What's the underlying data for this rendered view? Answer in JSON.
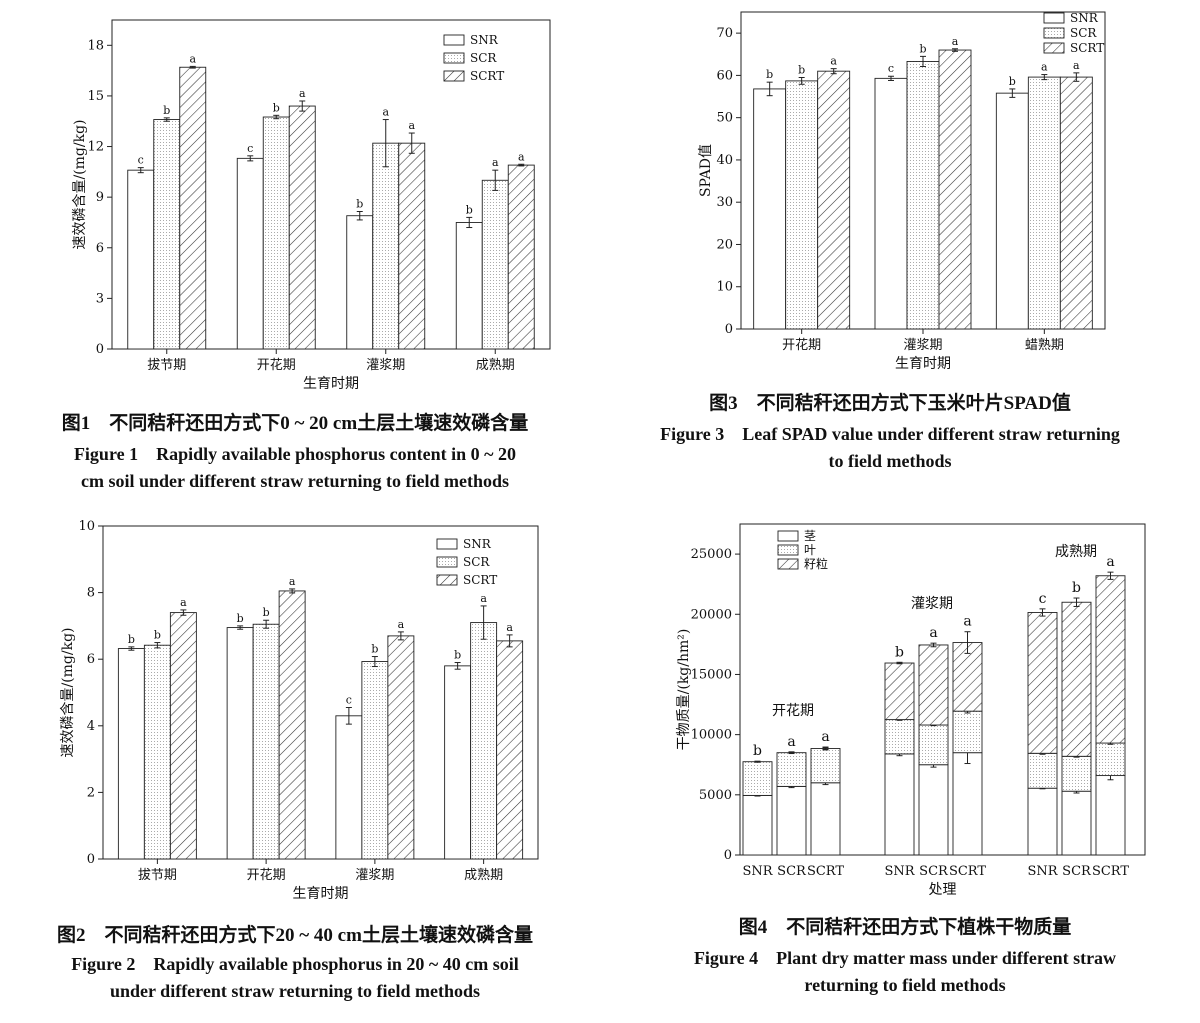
{
  "figures": [
    {
      "caption_zh": "图1　不同秸秆还田方式下0 ~ 20 cm土层土壤速效磷含量",
      "caption_en_1": "Figure 1　Rapidly available phosphorus content in 0 ~ 20",
      "caption_en_2": "cm soil under different straw returning to field methods"
    },
    {
      "caption_zh": "图3　不同秸秆还田方式下玉米叶片SPAD值",
      "caption_en_1": "Figure 3　Leaf SPAD value under different straw returning",
      "caption_en_2": "to field methods"
    },
    {
      "caption_zh": "图2　不同秸秆还田方式下20 ~ 40 cm土层土壤速效磷含量",
      "caption_en_1": "Figure 2　Rapidly available phosphorus in 20 ~ 40 cm soil",
      "caption_en_2": "under different straw returning to field methods"
    },
    {
      "caption_zh": "图4　不同秸秆还田方式下植株干物质量",
      "caption_en_1": "Figure 4　Plant dry matter mass under different straw",
      "caption_en_2": "returning to field methods"
    }
  ],
  "chart_data": [
    {
      "type": "bar",
      "categories": [
        "拔节期",
        "开花期",
        "灌浆期",
        "成熟期"
      ],
      "xlabel": "生育时期",
      "ylabel": "速效磷含量/(mg/kg)",
      "ylim": [
        0,
        19.5
      ],
      "yticks": [
        0,
        3,
        6,
        9,
        12,
        15,
        18
      ],
      "legend_position": "top-right",
      "series": [
        {
          "name": "SNR",
          "pattern": "blank",
          "values": [
            10.6,
            11.3,
            7.9,
            7.5
          ],
          "errors": [
            0.15,
            0.15,
            0.25,
            0.3
          ],
          "letters": [
            "c",
            "c",
            "b",
            "b"
          ]
        },
        {
          "name": "SCR",
          "pattern": "dots",
          "values": [
            13.6,
            13.75,
            12.2,
            10.0
          ],
          "errors": [
            0.1,
            0.1,
            1.4,
            0.6
          ],
          "letters": [
            "b",
            "b",
            "a",
            "a"
          ]
        },
        {
          "name": "SCRT",
          "pattern": "hatch",
          "values": [
            16.7,
            14.4,
            12.2,
            10.9
          ],
          "errors": [
            0.05,
            0.3,
            0.6,
            0.05
          ],
          "letters": [
            "a",
            "a",
            "a",
            "a"
          ]
        }
      ]
    },
    {
      "type": "bar",
      "categories": [
        "开花期",
        "灌浆期",
        "蜡熟期"
      ],
      "xlabel": "生育时期",
      "ylabel": "SPAD值",
      "ylim": [
        0,
        75
      ],
      "yticks": [
        0,
        10,
        20,
        30,
        40,
        50,
        60,
        70
      ],
      "legend_position": "top-right",
      "series": [
        {
          "name": "SNR",
          "pattern": "blank",
          "values": [
            56.8,
            59.3,
            55.8
          ],
          "errors": [
            1.6,
            0.5,
            1.0
          ],
          "letters": [
            "b",
            "c",
            "b"
          ]
        },
        {
          "name": "SCR",
          "pattern": "dots",
          "values": [
            58.7,
            63.3,
            59.6
          ],
          "errors": [
            0.8,
            1.2,
            0.6
          ],
          "letters": [
            "b",
            "b",
            "a"
          ]
        },
        {
          "name": "SCRT",
          "pattern": "hatch",
          "values": [
            61.0,
            66.0,
            59.6
          ],
          "errors": [
            0.6,
            0.3,
            1.0
          ],
          "letters": [
            "a",
            "a",
            "a"
          ]
        }
      ]
    },
    {
      "type": "bar",
      "categories": [
        "拔节期",
        "开花期",
        "灌浆期",
        "成熟期"
      ],
      "xlabel": "生育时期",
      "ylabel": "速效磷含量/(mg/kg)",
      "ylim": [
        0,
        10
      ],
      "yticks": [
        0,
        2,
        4,
        6,
        8,
        10
      ],
      "legend_position": "top-right",
      "series": [
        {
          "name": "SNR",
          "pattern": "blank",
          "values": [
            6.32,
            6.95,
            4.3,
            5.8
          ],
          "errors": [
            0.05,
            0.05,
            0.25,
            0.1
          ],
          "letters": [
            "b",
            "b",
            "c",
            "b"
          ]
        },
        {
          "name": "SCR",
          "pattern": "dots",
          "values": [
            6.42,
            7.05,
            5.93,
            7.1
          ],
          "errors": [
            0.08,
            0.12,
            0.15,
            0.5
          ],
          "letters": [
            "b",
            "b",
            "b",
            "a"
          ]
        },
        {
          "name": "SCRT",
          "pattern": "hatch",
          "values": [
            7.4,
            8.05,
            6.7,
            6.55
          ],
          "errors": [
            0.08,
            0.06,
            0.12,
            0.18
          ],
          "letters": [
            "a",
            "a",
            "a",
            "a"
          ]
        }
      ]
    },
    {
      "type": "bar",
      "stacked": true,
      "groups": [
        "开花期",
        "灌浆期",
        "成熟期"
      ],
      "categories": [
        "SNR",
        "SCR",
        "SCRT"
      ],
      "xlabel": "处理",
      "ylabel": "干物质量/(kg/hm²)",
      "ylim": [
        0,
        27500
      ],
      "yticks": [
        0,
        5000,
        10000,
        15000,
        20000,
        25000
      ],
      "legend_position": "top-left",
      "series": [
        {
          "name": "茎",
          "pattern": "blank",
          "values": [
            [
              4950,
              5700,
              6000
            ],
            [
              8400,
              7500,
              8500
            ],
            [
              5550,
              5300,
              6600
            ]
          ],
          "errors": [
            [
              50,
              100,
              150
            ],
            [
              150,
              200,
              900
            ],
            [
              50,
              150,
              350
            ]
          ]
        },
        {
          "name": "叶",
          "pattern": "dots",
          "values": [
            [
              2800,
              2800,
              2850
            ],
            [
              2850,
              3300,
              3450
            ],
            [
              2900,
              2900,
              2700
            ]
          ],
          "errors": [
            [
              30,
              60,
              60
            ],
            [
              60,
              50,
              150
            ],
            [
              80,
              70,
              100
            ]
          ]
        },
        {
          "name": "籽粒",
          "pattern": "hatch",
          "values": [
            [
              0,
              0,
              0
            ],
            [
              4700,
              6650,
              5700
            ],
            [
              11700,
              12800,
              13900
            ]
          ],
          "errors": [
            [
              40,
              70,
              120
            ],
            [
              60,
              150,
              900
            ],
            [
              300,
              350,
              300
            ]
          ]
        }
      ],
      "letters": [
        [
          "b",
          "a",
          "a"
        ],
        [
          "b",
          "a",
          "a"
        ],
        [
          "c",
          "b",
          "a"
        ]
      ]
    }
  ]
}
